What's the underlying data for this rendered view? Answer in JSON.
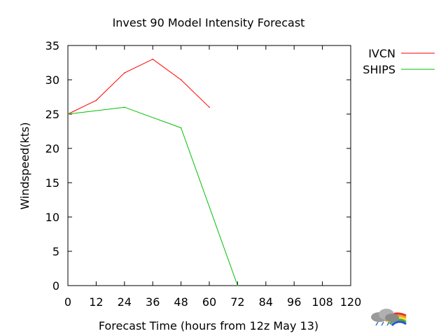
{
  "chart_data": {
    "type": "line",
    "title": "Invest 90 Model Intensity Forecast",
    "xlabel": "Forecast Time (hours from 12z May 13)",
    "ylabel": "Windspeed(kts)",
    "xlim": [
      0,
      120
    ],
    "ylim": [
      0,
      35
    ],
    "xticks": [
      0,
      12,
      24,
      36,
      48,
      60,
      72,
      84,
      96,
      108,
      120
    ],
    "yticks": [
      0,
      5,
      10,
      15,
      20,
      25,
      30,
      35
    ],
    "grid": false,
    "legend_position": "top-right outside",
    "series": [
      {
        "name": "IVCN",
        "color": "#ff0000",
        "x": [
          0,
          12,
          24,
          36,
          48,
          60
        ],
        "y": [
          25,
          27,
          31,
          33,
          30,
          26
        ]
      },
      {
        "name": "SHIPS",
        "color": "#00c000",
        "x": [
          0,
          24,
          48,
          72
        ],
        "y": [
          25,
          26,
          23,
          0
        ]
      }
    ]
  },
  "logo": {
    "name": "weather-cloud-rainbow-logo"
  }
}
